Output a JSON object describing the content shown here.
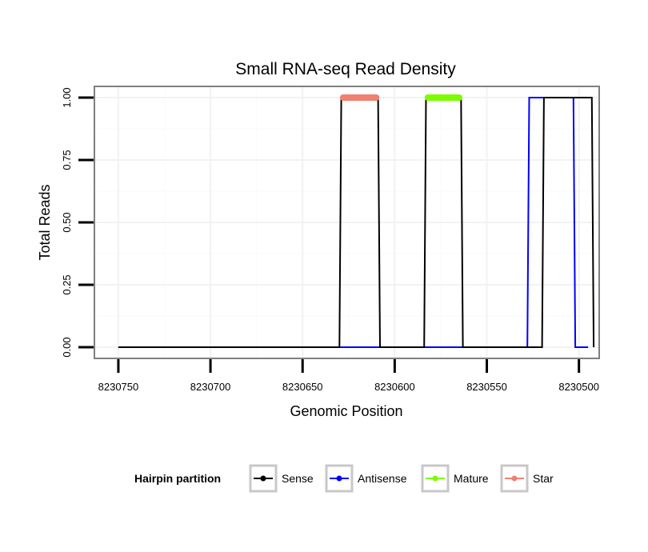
{
  "chart_data": {
    "type": "line",
    "title": "Small RNA-seq Read Density",
    "xlabel": "Genomic Position",
    "ylabel": "Total Reads",
    "xlim": [
      8230763,
      8230489
    ],
    "x_reversed": true,
    "ylim": [
      -0.045,
      1.045
    ],
    "x_ticks": [
      8230750,
      8230700,
      8230650,
      8230600,
      8230550,
      8230500
    ],
    "x_tick_labels": [
      "8230750",
      "8230700",
      "8230650",
      "8230600",
      "8230550",
      "8230500"
    ],
    "y_ticks": [
      0,
      0.25,
      0.5,
      0.75,
      1.0
    ],
    "y_tick_labels": [
      "0.00",
      "0.25",
      "0.50",
      "0.75",
      "1.00"
    ],
    "grid": true,
    "legend": {
      "title": "Hairpin partition",
      "position": "bottom",
      "entries": [
        {
          "name": "Sense",
          "color": "#000000"
        },
        {
          "name": "Antisense",
          "color": "#0000ff"
        },
        {
          "name": "Mature",
          "color": "#7cfc00"
        },
        {
          "name": "Star",
          "color": "#f08070"
        }
      ]
    },
    "series": [
      {
        "name": "Antisense",
        "color": "#0000ff",
        "x": [
          8230630,
          8230528,
          8230527,
          8230503,
          8230502,
          8230495
        ],
        "y": [
          0,
          0,
          1,
          1,
          0,
          0
        ]
      },
      {
        "name": "Sense",
        "color": "#000000",
        "x": [
          8230750,
          8230630,
          8230629,
          8230609,
          8230608,
          8230584,
          8230583,
          8230564,
          8230563,
          8230520,
          8230519,
          8230493,
          8230492
        ],
        "y": [
          0,
          0,
          1,
          1,
          0,
          0,
          1,
          1,
          0,
          0,
          1,
          1,
          0
        ]
      },
      {
        "name": "Star",
        "color": "#f08070",
        "x": [
          8230628,
          8230610
        ],
        "y": [
          1,
          1
        ]
      },
      {
        "name": "Mature",
        "color": "#7cfc00",
        "x": [
          8230582,
          8230565
        ],
        "y": [
          1,
          1
        ]
      }
    ]
  }
}
